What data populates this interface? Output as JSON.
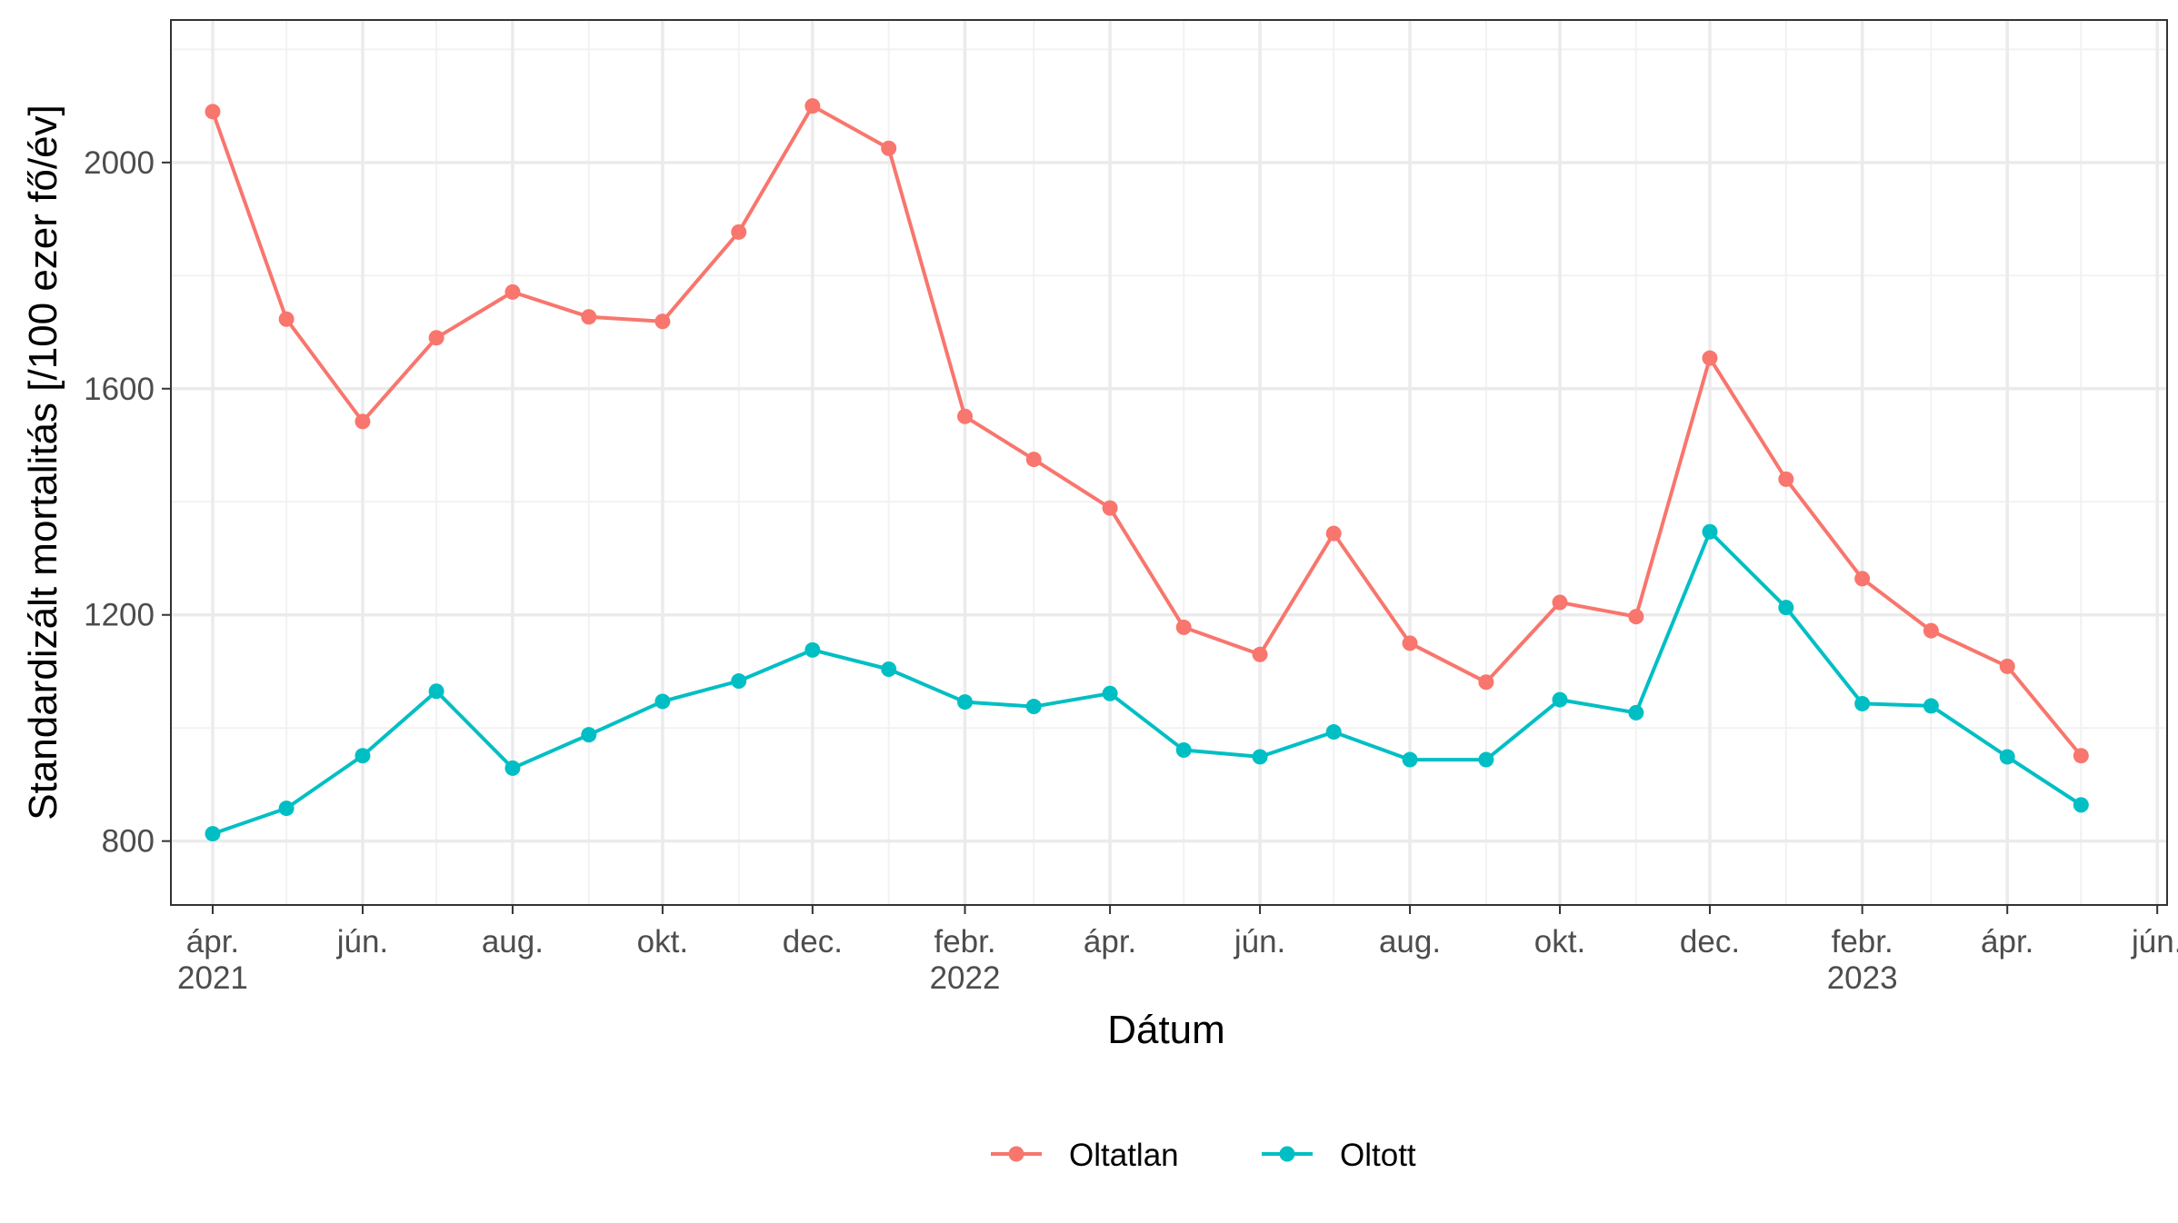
{
  "chart_data": {
    "type": "line",
    "title": "",
    "xlabel": "Dátum",
    "ylabel": "Standardizált mortalitás [/100 ezer fő/év]",
    "x_axis": {
      "range": [
        "2021-03-15",
        "2023-06-05"
      ],
      "ticks": [
        {
          "date": "2021-04-01",
          "label": "ápr.",
          "year": "2021"
        },
        {
          "date": "2021-06-01",
          "label": "jún.",
          "year": ""
        },
        {
          "date": "2021-08-01",
          "label": "aug.",
          "year": ""
        },
        {
          "date": "2021-10-01",
          "label": "okt.",
          "year": ""
        },
        {
          "date": "2021-12-01",
          "label": "dec.",
          "year": ""
        },
        {
          "date": "2022-02-01",
          "label": "febr.",
          "year": "2022"
        },
        {
          "date": "2022-04-01",
          "label": "ápr.",
          "year": ""
        },
        {
          "date": "2022-06-01",
          "label": "jún.",
          "year": ""
        },
        {
          "date": "2022-08-01",
          "label": "aug.",
          "year": ""
        },
        {
          "date": "2022-10-01",
          "label": "okt.",
          "year": ""
        },
        {
          "date": "2022-12-01",
          "label": "dec.",
          "year": ""
        },
        {
          "date": "2023-02-01",
          "label": "febr.",
          "year": "2023"
        },
        {
          "date": "2023-04-01",
          "label": "ápr.",
          "year": ""
        },
        {
          "date": "2023-06-01",
          "label": "jún.",
          "year": ""
        }
      ],
      "minor_ticks": [
        "2021-05-01",
        "2021-07-01",
        "2021-09-01",
        "2021-11-01",
        "2022-01-01",
        "2022-03-01",
        "2022-05-01",
        "2022-07-01",
        "2022-09-01",
        "2022-11-01",
        "2023-01-01",
        "2023-03-01",
        "2023-05-01"
      ]
    },
    "y_axis": {
      "range": [
        687,
        2252
      ],
      "ticks": [
        800,
        1200,
        1600,
        2000
      ],
      "minor_ticks": [
        1000,
        1400,
        1800,
        2200
      ]
    },
    "grid": true,
    "legend_position": "bottom",
    "x": [
      "2021-04-01",
      "2021-05-01",
      "2021-06-01",
      "2021-07-01",
      "2021-08-01",
      "2021-09-01",
      "2021-10-01",
      "2021-11-01",
      "2021-12-01",
      "2022-01-01",
      "2022-02-01",
      "2022-03-01",
      "2022-04-01",
      "2022-05-01",
      "2022-06-01",
      "2022-07-01",
      "2022-08-01",
      "2022-09-01",
      "2022-10-01",
      "2022-11-01",
      "2022-12-01",
      "2023-01-01",
      "2023-02-01",
      "2023-03-01",
      "2023-04-01",
      "2023-05-01"
    ],
    "series": [
      {
        "name": "Oltatlan",
        "color": "#F8766D",
        "values": [
          2090,
          1723,
          1542,
          1690,
          1771,
          1727,
          1719,
          1877,
          2100,
          2025,
          1551,
          1475,
          1389,
          1178,
          1130,
          1344,
          1150,
          1081,
          1222,
          1197,
          1654,
          1440,
          1264,
          1172,
          1109,
          951
        ]
      },
      {
        "name": "Oltott",
        "color": "#00BFC4",
        "values": [
          813,
          858,
          951,
          1065,
          929,
          988,
          1047,
          1083,
          1138,
          1104,
          1046,
          1038,
          1061,
          961,
          949,
          993,
          944,
          944,
          1050,
          1027,
          1347,
          1213,
          1043,
          1039,
          949,
          864
        ]
      }
    ]
  }
}
